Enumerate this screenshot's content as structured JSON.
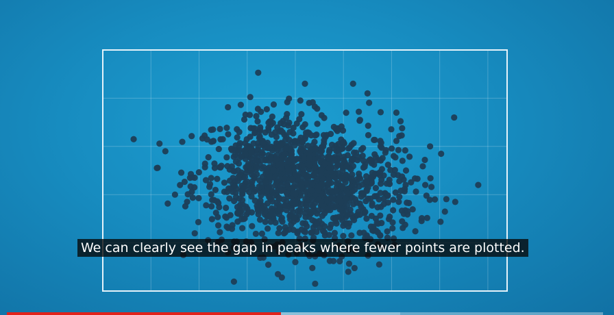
{
  "video": {
    "caption": "We can clearly see the gap in peaks where fewer points are plotted.",
    "progress_fraction": 0.46,
    "buffer_fraction": 0.66,
    "progress_color": "#e1231b"
  },
  "chart_data": {
    "type": "scatter",
    "grid": true,
    "frame_color": "#e6f3fa",
    "point_color": "#1e3e57",
    "xlim": [
      0,
      8.4
    ],
    "ylim": [
      0,
      5
    ],
    "clusters": [
      {
        "center": [
          3.6,
          2.4
        ],
        "spread": [
          0.85,
          0.65
        ],
        "count": 700
      },
      {
        "center": [
          4.8,
          2.1
        ],
        "spread": [
          0.85,
          0.62
        ],
        "count": 650
      }
    ],
    "outliers": [
      [
        7.3,
        3.6
      ],
      [
        7.8,
        2.2
      ],
      [
        6.7,
        2.2
      ],
      [
        6.3,
        2.5
      ],
      [
        6.9,
        1.9
      ],
      [
        1.5,
        2.0
      ],
      [
        1.3,
        2.9
      ],
      [
        5.1,
        0.4
      ],
      [
        4.0,
        0.6
      ],
      [
        6.8,
        3.0
      ],
      [
        5.5,
        4.1
      ],
      [
        5.2,
        4.3
      ],
      [
        2.6,
        0.8
      ],
      [
        6.1,
        3.7
      ],
      [
        4.2,
        4.3
      ]
    ]
  }
}
